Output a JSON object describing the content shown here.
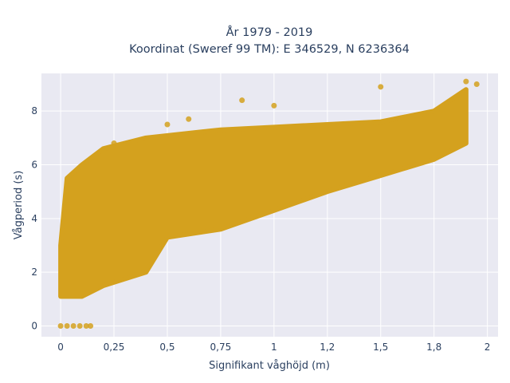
{
  "chart_data": {
    "type": "scatter",
    "title_lines": [
      "År 1979 - 2019",
      "Koordinat (Sweref 99 TM): E 346529, N 6236364"
    ],
    "xlabel": "Signifikant våghöjd (m)",
    "ylabel": "Vågperiod (s)",
    "xlim": [
      -0.09,
      2.05
    ],
    "ylim": [
      -0.4,
      9.4
    ],
    "x_ticks": [
      0,
      0.25,
      0.5,
      0.75,
      1,
      1.25,
      1.5,
      1.75,
      2
    ],
    "x_tick_labels": [
      "0",
      "0,25",
      "0,5",
      "0,75",
      "1",
      "1,2",
      "1,5",
      "1,8",
      "2"
    ],
    "y_ticks": [
      0,
      2,
      4,
      6,
      8
    ],
    "y_tick_labels": [
      "0",
      "2",
      "4",
      "6",
      "8"
    ],
    "grid": true,
    "background": "#e9e9f2",
    "marker_color": "#d4a11e",
    "point_cloud": {
      "description_of_density": "approximate envelope of the dense scatter",
      "upper_boundary": [
        [
          0.0,
          3.0
        ],
        [
          0.03,
          5.5
        ],
        [
          0.1,
          6.0
        ],
        [
          0.2,
          6.6
        ],
        [
          0.4,
          7.0
        ],
        [
          0.75,
          7.3
        ],
        [
          1.0,
          7.4
        ],
        [
          1.25,
          7.5
        ],
        [
          1.5,
          7.6
        ],
        [
          1.75,
          8.0
        ],
        [
          1.9,
          8.8
        ]
      ],
      "lower_boundary": [
        [
          0.0,
          1.1
        ],
        [
          0.1,
          1.1
        ],
        [
          0.2,
          1.5
        ],
        [
          0.4,
          2.0
        ],
        [
          0.5,
          3.3
        ],
        [
          0.75,
          3.6
        ],
        [
          1.0,
          4.3
        ],
        [
          1.25,
          5.0
        ],
        [
          1.5,
          5.6
        ],
        [
          1.75,
          6.2
        ],
        [
          1.9,
          6.8
        ]
      ],
      "zero_period_points": [
        [
          0.0,
          0
        ],
        [
          0.03,
          0
        ],
        [
          0.06,
          0
        ],
        [
          0.09,
          0
        ],
        [
          0.12,
          0
        ],
        [
          0.14,
          0
        ]
      ],
      "outliers": [
        [
          1.5,
          8.9
        ],
        [
          1.9,
          9.1
        ],
        [
          1.95,
          9.0
        ],
        [
          0.85,
          8.4
        ],
        [
          1.0,
          8.2
        ],
        [
          0.25,
          6.8
        ],
        [
          0.5,
          7.5
        ],
        [
          0.6,
          7.7
        ]
      ]
    }
  }
}
